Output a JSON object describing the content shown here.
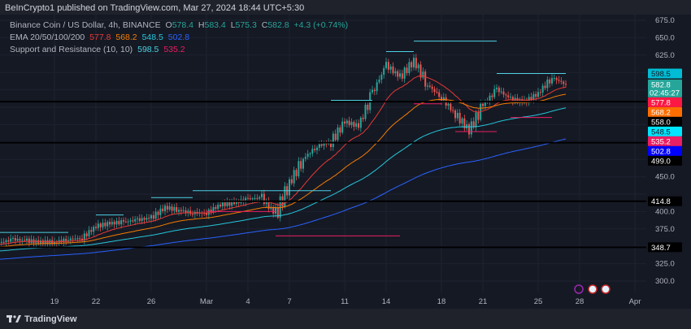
{
  "publisher": "BeInCrypto1 published on TradingView.com, Mar 27, 2024 18:44 UTC+5:30",
  "legend": {
    "symbol": "Binance Coin / US Dollar, 4h, BINANCE",
    "o_label": "O",
    "o": "578.4",
    "h_label": "H",
    "h": "583.4",
    "l_label": "L",
    "l": "575.3",
    "c_label": "C",
    "c": "582.8",
    "change": "+4.3 (+0.74%)",
    "ema_label": "EMA 20/50/100/200",
    "ema20": "577.8",
    "ema50": "568.2",
    "ema100": "548.5",
    "ema200": "502.8",
    "sr_label": "Support and Resistance (10, 10)",
    "res": "598.5",
    "sup": "535.2"
  },
  "footer": {
    "brand": "TradingView"
  },
  "colors": {
    "up": "#26a69a",
    "down": "#ef5350",
    "ema20": "#e53935",
    "ema50": "#f57c00",
    "ema100": "#26c6da",
    "ema200": "#2962ff",
    "resistance": "#4dd0e1",
    "support": "#e91e63",
    "bg": "#151924"
  },
  "chart_data": {
    "type": "candlestick",
    "symbol": "BNB/USD",
    "interval": "4h",
    "ylim": [
      290,
      680
    ],
    "y_ticks": [
      675,
      650,
      625,
      600,
      575,
      550,
      525,
      500,
      475,
      450,
      425,
      400,
      375,
      350,
      325,
      300
    ],
    "x_ticks": [
      {
        "label": "19",
        "date": "2024-02-19"
      },
      {
        "label": "22",
        "date": "2024-02-22"
      },
      {
        "label": "26",
        "date": "2024-02-26"
      },
      {
        "label": "Mar",
        "date": "2024-03-01"
      },
      {
        "label": "4",
        "date": "2024-03-04"
      },
      {
        "label": "7",
        "date": "2024-03-07"
      },
      {
        "label": "11",
        "date": "2024-03-11"
      },
      {
        "label": "14",
        "date": "2024-03-14"
      },
      {
        "label": "18",
        "date": "2024-03-18"
      },
      {
        "label": "21",
        "date": "2024-03-21"
      },
      {
        "label": "25",
        "date": "2024-03-25"
      },
      {
        "label": "28",
        "date": "2024-03-28"
      },
      {
        "label": "Apr",
        "date": "2024-04-01"
      }
    ],
    "daily_closes": [
      [
        "2024-02-15",
        355
      ],
      [
        "2024-02-16",
        360
      ],
      [
        "2024-02-17",
        358
      ],
      [
        "2024-02-18",
        356
      ],
      [
        "2024-02-19",
        356
      ],
      [
        "2024-02-20",
        360
      ],
      [
        "2024-02-21",
        362
      ],
      [
        "2024-02-22",
        379
      ],
      [
        "2024-02-23",
        383
      ],
      [
        "2024-02-24",
        385
      ],
      [
        "2024-02-25",
        388
      ],
      [
        "2024-02-26",
        391
      ],
      [
        "2024-02-27",
        406
      ],
      [
        "2024-02-28",
        402
      ],
      [
        "2024-02-29",
        398
      ],
      [
        "2024-03-01",
        398
      ],
      [
        "2024-03-02",
        410
      ],
      [
        "2024-03-03",
        412
      ],
      [
        "2024-03-04",
        418
      ],
      [
        "2024-03-05",
        420
      ],
      [
        "2024-03-06",
        395
      ],
      [
        "2024-03-07",
        441
      ],
      [
        "2024-03-08",
        476
      ],
      [
        "2024-03-09",
        494
      ],
      [
        "2024-03-10",
        500
      ],
      [
        "2024-03-11",
        529
      ],
      [
        "2024-03-12",
        523
      ],
      [
        "2024-03-13",
        570
      ],
      [
        "2024-03-14",
        611
      ],
      [
        "2024-03-15",
        593
      ],
      [
        "2024-03-16",
        617
      ],
      [
        "2024-03-17",
        582
      ],
      [
        "2024-03-18",
        564
      ],
      [
        "2024-03-19",
        540
      ],
      [
        "2024-03-20",
        517
      ],
      [
        "2024-03-21",
        552
      ],
      [
        "2024-03-22",
        576
      ],
      [
        "2024-03-23",
        562
      ],
      [
        "2024-03-24",
        558
      ],
      [
        "2024-03-25",
        570
      ],
      [
        "2024-03-26",
        593
      ],
      [
        "2024-03-27",
        582.8
      ]
    ],
    "horizontal_levels": [
      558.0,
      499.0,
      414.8,
      348.7
    ],
    "sr_segments": [
      {
        "kind": "resistance",
        "price": 370,
        "from": "2024-02-15",
        "to": "2024-02-20"
      },
      {
        "kind": "resistance",
        "price": 395,
        "from": "2024-02-22",
        "to": "2024-02-24"
      },
      {
        "kind": "resistance",
        "price": 420,
        "from": "2024-02-26",
        "to": "2024-02-29"
      },
      {
        "kind": "resistance",
        "price": 430,
        "from": "2024-02-29",
        "to": "2024-03-10"
      },
      {
        "kind": "resistance",
        "price": 560,
        "from": "2024-03-10",
        "to": "2024-03-13"
      },
      {
        "kind": "resistance",
        "price": 630,
        "from": "2024-03-14",
        "to": "2024-03-16"
      },
      {
        "kind": "resistance",
        "price": 645,
        "from": "2024-03-16",
        "to": "2024-03-22"
      },
      {
        "kind": "resistance",
        "price": 598.5,
        "from": "2024-03-22",
        "to": "2024-03-27"
      },
      {
        "kind": "support",
        "price": 400,
        "from": "2024-03-01",
        "to": "2024-03-06"
      },
      {
        "kind": "support",
        "price": 365,
        "from": "2024-03-06",
        "to": "2024-03-15"
      },
      {
        "kind": "support",
        "price": 555,
        "from": "2024-03-16",
        "to": "2024-03-18"
      },
      {
        "kind": "support",
        "price": 515,
        "from": "2024-03-19",
        "to": "2024-03-22"
      },
      {
        "kind": "support",
        "price": 535.2,
        "from": "2024-03-23",
        "to": "2024-03-26"
      }
    ],
    "price_labels": [
      {
        "text": "598.5",
        "bg": "#00bcd4",
        "fg": "#131722"
      },
      {
        "text": "582.8",
        "sub": "02:45:27",
        "bg": "#26a69a",
        "fg": "#ffffff"
      },
      {
        "text": "577.8",
        "bg": "#ff1744",
        "fg": "#ffffff"
      },
      {
        "text": "568.2",
        "bg": "#ff6d00",
        "fg": "#ffffff"
      },
      {
        "text": "558.0",
        "bg": "#000000",
        "fg": "#ffffff"
      },
      {
        "text": "548.5",
        "bg": "#00e5ff",
        "fg": "#131722"
      },
      {
        "text": "535.2",
        "bg": "#e91e63",
        "fg": "#ffffff"
      },
      {
        "text": "502.8",
        "bg": "#0000ff",
        "fg": "#ffffff"
      },
      {
        "text": "499.0",
        "bg": "#000000",
        "fg": "#ffffff"
      },
      {
        "text": "414.8",
        "bg": "#000000",
        "fg": "#ffffff"
      },
      {
        "text": "348.7",
        "bg": "#000000",
        "fg": "#ffffff"
      }
    ]
  }
}
